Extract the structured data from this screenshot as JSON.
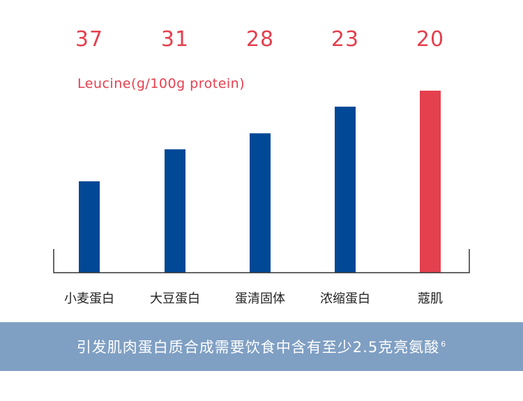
{
  "chart_data": {
    "type": "bar",
    "categories": [
      "小麦蛋白",
      "大豆蛋白",
      "蛋清固体",
      "浓缩蛋白",
      "蔻肌"
    ],
    "values": [
      37,
      31,
      28,
      23,
      20
    ],
    "value_labels": [
      "37",
      "31",
      "28",
      "23",
      "20"
    ],
    "unit_label": "Leucine(g/100g protein)",
    "bar_colors": [
      "#014896",
      "#014896",
      "#014896",
      "#014896",
      "#e4404e"
    ],
    "value_label_color": "#e4404e",
    "ylim": [
      0,
      40
    ],
    "grid": false,
    "y_axis_visible": false,
    "bar_height_encoding": "inverse"
  },
  "footer": {
    "text": "引发肌肉蛋白质合成需要饮食中含有至少2.5克亮氨酸",
    "superscript": "6"
  },
  "colors": {
    "footer_bg": "#7f9fc3",
    "axis": "#333333"
  }
}
